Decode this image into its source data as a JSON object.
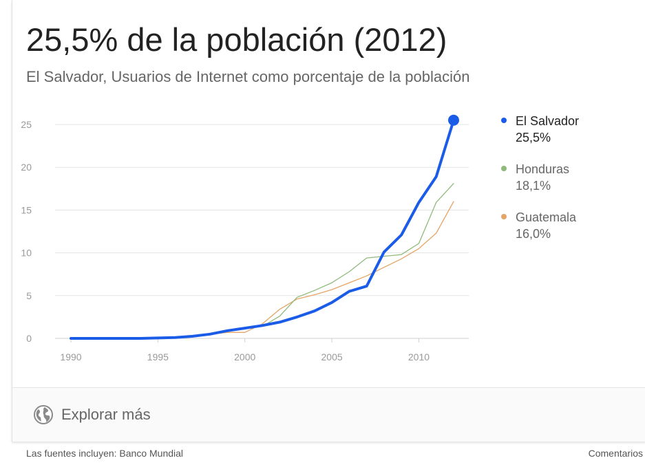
{
  "header": {
    "title": "25,5% de la población (2012)",
    "subtitle": "El Salvador, Usuarios de Internet como porcentaje de la población"
  },
  "legend": [
    {
      "name": "El Salvador",
      "value": "25,5%",
      "color": "#1a5ce8"
    },
    {
      "name": "Honduras",
      "value": "18,1%",
      "color": "#8fba7a"
    },
    {
      "name": "Guatemala",
      "value": "16,0%",
      "color": "#e6a466"
    }
  ],
  "explore": {
    "label": "Explorar más",
    "icon": "globe-icon"
  },
  "footer": {
    "sources": "Las fuentes incluyen: Banco Mundial",
    "comments": "Comentarios"
  },
  "chart_data": {
    "type": "line",
    "title": "25,5% de la población (2012)",
    "subtitle": "El Salvador, Usuarios de Internet como porcentaje de la población",
    "xlabel": "",
    "ylabel": "",
    "x": [
      1990,
      1991,
      1992,
      1993,
      1994,
      1995,
      1996,
      1997,
      1998,
      1999,
      2000,
      2001,
      2002,
      2003,
      2004,
      2005,
      2006,
      2007,
      2008,
      2009,
      2010,
      2011,
      2012
    ],
    "xticks": [
      1990,
      1995,
      2000,
      2005,
      2010
    ],
    "yticks": [
      0,
      5,
      10,
      15,
      20,
      25
    ],
    "xlim": [
      1990,
      2012
    ],
    "ylim": [
      0,
      25
    ],
    "grid": true,
    "legend_position": "right",
    "series": [
      {
        "name": "Guatemala",
        "color": "#e6a466",
        "width": 1.3,
        "values": [
          0,
          0,
          0,
          0,
          0,
          0.05,
          0.1,
          0.2,
          0.5,
          0.7,
          0.7,
          1.7,
          3.4,
          4.6,
          5.1,
          5.7,
          6.5,
          7.3,
          8.3,
          9.3,
          10.5,
          12.3,
          16.0
        ]
      },
      {
        "name": "Honduras",
        "color": "#8fba7a",
        "width": 1.3,
        "values": [
          0,
          0,
          0,
          0,
          0,
          0.05,
          0.1,
          0.2,
          0.4,
          0.8,
          1.2,
          1.4,
          2.6,
          4.8,
          5.6,
          6.5,
          7.8,
          9.4,
          9.6,
          9.8,
          11.1,
          15.9,
          18.1
        ]
      },
      {
        "name": "El Salvador",
        "color": "#1a5ce8",
        "width": 4,
        "values": [
          0,
          0,
          0,
          0,
          0,
          0.05,
          0.1,
          0.25,
          0.5,
          0.9,
          1.2,
          1.5,
          1.9,
          2.5,
          3.2,
          4.2,
          5.5,
          6.1,
          10.1,
          12.1,
          15.9,
          18.9,
          25.5
        ]
      }
    ]
  }
}
